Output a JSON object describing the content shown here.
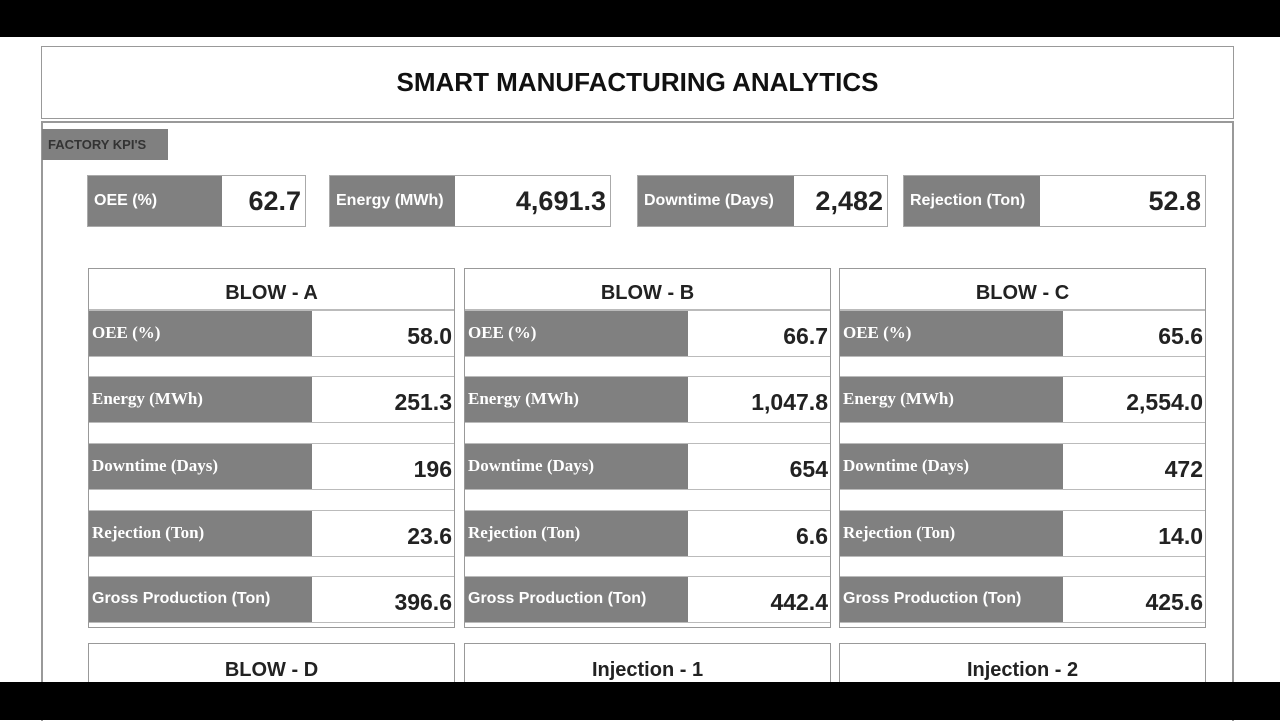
{
  "title": "SMART MANUFACTURING ANALYTICS",
  "section_tab": "FACTORY KPI'S",
  "kpis": [
    {
      "label": "OEE (%)",
      "value": "62.7"
    },
    {
      "label": "Energy (MWh)",
      "value": "4,691.3"
    },
    {
      "label": "Downtime (Days)",
      "value": "2,482"
    },
    {
      "label": "Rejection (Ton)",
      "value": "52.8"
    }
  ],
  "cards": [
    {
      "title": "BLOW - A",
      "rows": [
        {
          "label": "OEE (%)",
          "value": "58.0"
        },
        {
          "label": "Energy (MWh)",
          "value": "251.3"
        },
        {
          "label": "Downtime (Days)",
          "value": "196"
        },
        {
          "label": "Rejection (Ton)",
          "value": "23.6"
        },
        {
          "label": "Gross Production (Ton)",
          "value": "396.6"
        }
      ]
    },
    {
      "title": "BLOW - B",
      "rows": [
        {
          "label": "OEE (%)",
          "value": "66.7"
        },
        {
          "label": "Energy (MWh)",
          "value": "1,047.8"
        },
        {
          "label": "Downtime (Days)",
          "value": "654"
        },
        {
          "label": "Rejection (Ton)",
          "value": "6.6"
        },
        {
          "label": "Gross Production (Ton)",
          "value": "442.4"
        }
      ]
    },
    {
      "title": "BLOW - C",
      "rows": [
        {
          "label": "OEE (%)",
          "value": "65.6"
        },
        {
          "label": "Energy (MWh)",
          "value": "2,554.0"
        },
        {
          "label": "Downtime (Days)",
          "value": "472"
        },
        {
          "label": "Rejection (Ton)",
          "value": "14.0"
        },
        {
          "label": "Gross Production (Ton)",
          "value": "425.6"
        }
      ]
    }
  ],
  "lower_cards": [
    {
      "title": "BLOW - D"
    },
    {
      "title": "Injection - 1"
    },
    {
      "title": "Injection - 2"
    }
  ],
  "colors": {
    "label_bg": "#808080",
    "label_text": "#ffffff",
    "value_text": "#222222"
  }
}
